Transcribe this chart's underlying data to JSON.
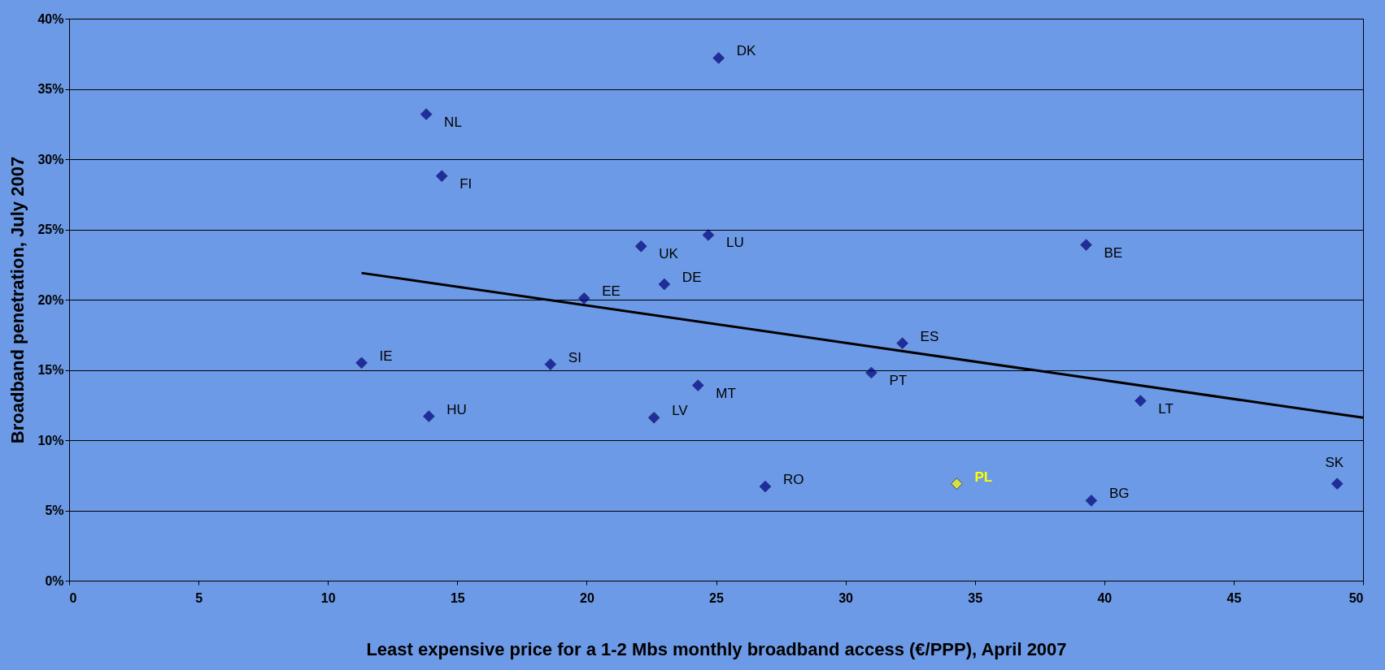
{
  "chart_data": {
    "type": "scatter",
    "xlabel": "Least expensive price for a 1-2 Mbs monthly broadband access (€/PPP), April 2007",
    "ylabel": "Broadband penetration, July 2007",
    "series": [
      {
        "type": "scatter",
        "color": "#000080",
        "marker": "diamond",
        "x": [
          25.1,
          13.8,
          14.4,
          22.1,
          24.7,
          39.3,
          19.9,
          23.0,
          11.3,
          18.6,
          24.3,
          31.0,
          32.2,
          13.9,
          22.6,
          41.4,
          26.9,
          34.3,
          39.5,
          49.0
        ],
        "values": [
          37.2,
          33.2,
          28.8,
          23.8,
          24.6,
          23.9,
          20.1,
          21.1,
          15.5,
          15.4,
          13.9,
          14.8,
          16.9,
          11.7,
          11.6,
          12.8,
          6.7,
          6.9,
          5.7,
          6.9
        ],
        "colors": [
          "#000080",
          "#000080",
          "#000080",
          "#000080",
          "#000080",
          "#000080",
          "#000080",
          "#000080",
          "#000080",
          "#000080",
          "#000080",
          "#000080",
          "#000080",
          "#000080",
          "#000080",
          "#000080",
          "#000080",
          "#ffff00",
          "#000080",
          "#000080"
        ]
      },
      {
        "type": "line",
        "color": "#000000",
        "x": [
          11.3,
          50
        ],
        "values": [
          21.9,
          11.6
        ]
      }
    ],
    "annotations": [
      {
        "text": "DK",
        "x": 25.1,
        "y": 37.2
      },
      {
        "text": "NL",
        "x": 13.8,
        "y": 33.2
      },
      {
        "text": "FI",
        "x": 14.4,
        "y": 28.8
      },
      {
        "text": "UK",
        "x": 22.1,
        "y": 23.8
      },
      {
        "text": "LU",
        "x": 24.7,
        "y": 24.6
      },
      {
        "text": "BE",
        "x": 39.3,
        "y": 23.9
      },
      {
        "text": "EE",
        "x": 19.9,
        "y": 20.1
      },
      {
        "text": "DE",
        "x": 23.0,
        "y": 21.1
      },
      {
        "text": "IE",
        "x": 11.3,
        "y": 15.5
      },
      {
        "text": "SI",
        "x": 18.6,
        "y": 15.4
      },
      {
        "text": "MT",
        "x": 24.3,
        "y": 13.9
      },
      {
        "text": "PT",
        "x": 31.0,
        "y": 14.8
      },
      {
        "text": "ES",
        "x": 32.2,
        "y": 16.9
      },
      {
        "text": "HU",
        "x": 13.9,
        "y": 11.7
      },
      {
        "text": "LV",
        "x": 22.6,
        "y": 11.6
      },
      {
        "text": "LT",
        "x": 41.4,
        "y": 12.8
      },
      {
        "text": "RO",
        "x": 26.9,
        "y": 6.7
      },
      {
        "text": "PL",
        "x": 34.3,
        "y": 6.9
      },
      {
        "text": "BG",
        "x": 39.5,
        "y": 5.7
      },
      {
        "text": "SK",
        "x": 49.0,
        "y": 6.9
      }
    ],
    "xlim": [
      0,
      50
    ],
    "xticks": [
      0,
      5,
      10,
      15,
      20,
      25,
      30,
      35,
      40,
      45,
      50
    ],
    "ylim": [
      0,
      40
    ],
    "yticks": [
      {
        "value": 0,
        "label": "0%"
      },
      {
        "value": 5,
        "label": "5%"
      },
      {
        "value": 10,
        "label": "10%"
      },
      {
        "value": 15,
        "label": "15%"
      },
      {
        "value": 20,
        "label": "20%"
      },
      {
        "value": 25,
        "label": "25%"
      },
      {
        "value": 30,
        "label": "30%"
      },
      {
        "value": 35,
        "label": "35%"
      },
      {
        "value": 40,
        "label": "40%"
      }
    ],
    "grid": "y"
  }
}
